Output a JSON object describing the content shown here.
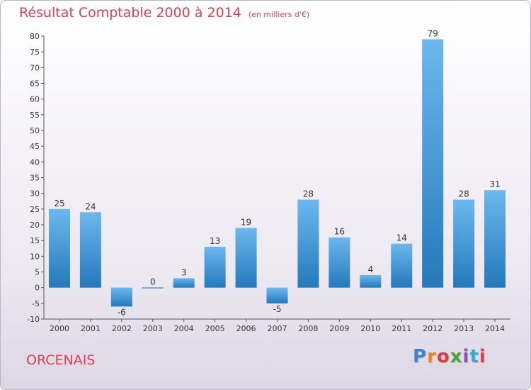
{
  "title": "Résultat Comptable 2000 à 2014",
  "subtitle": "(en milliers d'€)",
  "footer": {
    "city": "ORCENAIS",
    "logo": "Proxiti"
  },
  "colors": {
    "title": "#e0404f",
    "bar_light": "#6cb8ee",
    "bar_dark": "#2479bb"
  },
  "chart_data": {
    "type": "bar",
    "title": "Résultat Comptable 2000 à 2014",
    "subtitle": "(en milliers d'€)",
    "categories": [
      "2000",
      "2001",
      "2002",
      "2003",
      "2004",
      "2005",
      "2006",
      "2007",
      "2008",
      "2009",
      "2010",
      "2011",
      "2012",
      "2013",
      "2014"
    ],
    "values": [
      25,
      24,
      -6,
      0,
      3,
      13,
      19,
      -5,
      28,
      16,
      4,
      14,
      79,
      28,
      31
    ],
    "ylim": [
      -10,
      80
    ],
    "yticks": [
      -10,
      -5,
      0,
      5,
      10,
      15,
      20,
      25,
      30,
      35,
      40,
      45,
      50,
      55,
      60,
      65,
      70,
      75,
      80
    ],
    "grid": false,
    "data_labels": true
  }
}
